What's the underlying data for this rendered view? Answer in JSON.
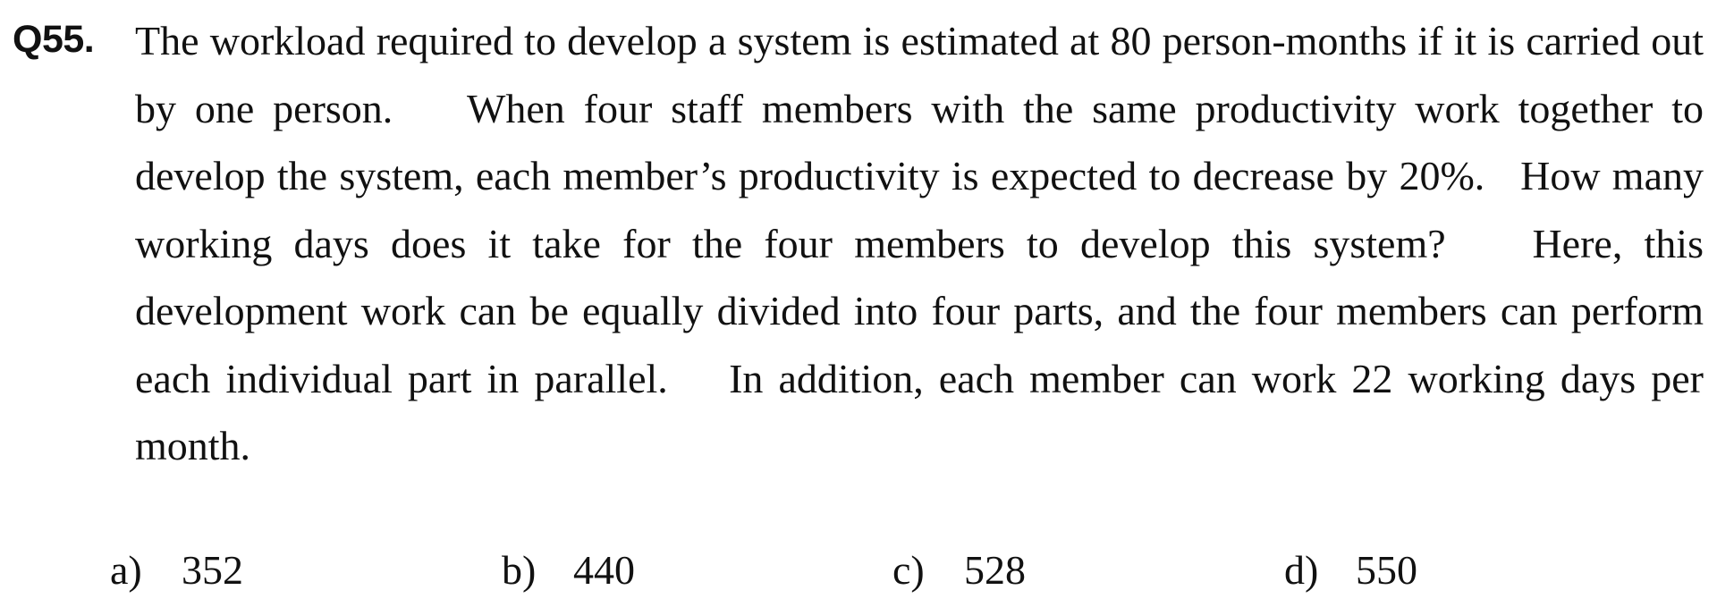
{
  "question": {
    "number": "Q55.",
    "sentences": [
      "The workload required to develop a system is estimated at 80 person-months if it is carried out by one person.",
      "When four staff members with the same productivity work together to develop the system, each member’s productivity is expected to decrease by 20%.",
      "How many working days does it take for the four members to develop this system?",
      "Here, this development work can be equally divided into four parts, and the four members can perform each individual part in parallel.",
      "In addition, each member can work 22 working days per month."
    ]
  },
  "options": [
    {
      "letter": "a)",
      "value": "352"
    },
    {
      "letter": "b)",
      "value": "440"
    },
    {
      "letter": "c)",
      "value": "528"
    },
    {
      "letter": "d)",
      "value": "550"
    }
  ]
}
